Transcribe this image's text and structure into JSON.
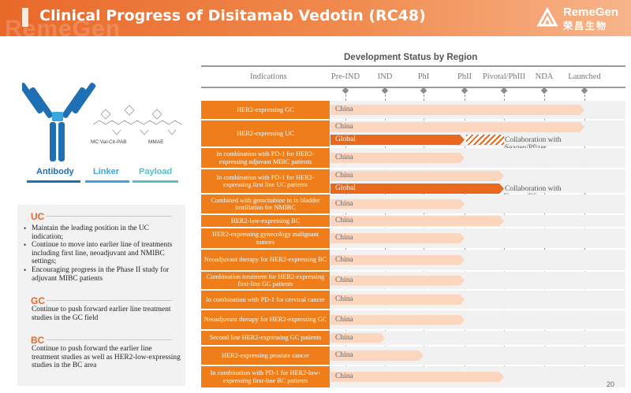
{
  "header": {
    "title": "Clinical Progress of Disitamab Vedotin (RC48)",
    "ghost_text": "RemeGen",
    "logo": {
      "brand": "RemeGen",
      "brand_cn": "荣昌生物"
    }
  },
  "figure": {
    "labels": {
      "antibody": "Antibody",
      "linker": "Linker",
      "payload": "Payload"
    },
    "chem_labels": {
      "mc_val_cit": "MC  Val-Cit-PAB",
      "mmae": "MMAE"
    },
    "colors": {
      "antibody": "#1f6fb5",
      "linker": "#3aa6dd",
      "payload": "#56c1c8"
    }
  },
  "left_panel": {
    "uc": {
      "title": "UC",
      "bullets": [
        "Maintain the leading position in the UC indication;",
        "Continue to move into earlier line of treatments including first line, neoadjuvant and NMIBC settings;",
        "Encouraging progress in the Phase II study for adjuvant MIBC patients"
      ]
    },
    "gc": {
      "title": "GC",
      "text": "Continue to push forward earlier line treatment studies in the GC field"
    },
    "bc": {
      "title": "BC",
      "text": "Continue to push forward the earlier line treatment studies as well as HER2-low-expressing studies in the BC area"
    }
  },
  "chart": {
    "title": "Development  Status by Region",
    "indications_header": "Indications",
    "stages": [
      "Pre-IND",
      "IND",
      "PhI",
      "PhII",
      "Pivotal/PhIII",
      "NDA",
      "Launched"
    ],
    "rows": [
      {
        "indication": "HER2-expressing GC",
        "bars": [
          {
            "region": "China",
            "stage_reached": 6.0,
            "style": "light"
          }
        ]
      },
      {
        "indication": "HER2-expressing UC",
        "bars": [
          {
            "region": "China",
            "stage_reached": 6.0,
            "style": "light"
          },
          {
            "region": "Global",
            "stage_reached": 3.0,
            "style": "dark",
            "hatched_to": 4.0
          }
        ],
        "note": "Collaboration with Seagen/Pfizer"
      },
      {
        "indication": "In combination with PD-1 for HER2-expressing adjuvant MIBC patients",
        "bars": [
          {
            "region": "China",
            "stage_reached": 3.0,
            "style": "light"
          }
        ]
      },
      {
        "indication": "In combination with PD-1 for HER2-expressing first line UC patients",
        "bars": [
          {
            "region": "China",
            "stage_reached": 4.0,
            "style": "light"
          },
          {
            "region": "Global",
            "stage_reached": 4.0,
            "style": "dark"
          }
        ],
        "note": "Collaboration with Seagen/Pfizer"
      },
      {
        "indication": "Combined with gemcitabine in in bladder instillation for NMIBC",
        "bars": [
          {
            "region": "China",
            "stage_reached": 3.0,
            "style": "light"
          }
        ]
      },
      {
        "indication": "HER2-low-expressing  BC",
        "bars": [
          {
            "region": "China",
            "stage_reached": 4.0,
            "style": "light"
          }
        ]
      },
      {
        "indication": "HER2-expressing gynecology malignant tumors",
        "bars": [
          {
            "region": "China",
            "stage_reached": 3.0,
            "style": "light"
          }
        ]
      },
      {
        "indication": "Neoadjuvant therapy for HER2-expressing BC",
        "bars": [
          {
            "region": "China",
            "stage_reached": 3.0,
            "style": "light"
          }
        ]
      },
      {
        "indication": "Combination treatment for HER2-expressing first-line GC patients",
        "bars": [
          {
            "region": "China",
            "stage_reached": 3.0,
            "style": "light"
          }
        ]
      },
      {
        "indication": "In combination with PD-1 for cervical cancer",
        "bars": [
          {
            "region": "China",
            "stage_reached": 3.0,
            "style": "light"
          }
        ]
      },
      {
        "indication": "Neoadjuvant therapy for HER2-expressing GC",
        "bars": [
          {
            "region": "China",
            "stage_reached": 3.0,
            "style": "light"
          }
        ]
      },
      {
        "indication": "Second line HER2-expressing GC patients",
        "bars": [
          {
            "region": "China",
            "stage_reached": 1.0,
            "style": "light"
          }
        ]
      },
      {
        "indication": "HER2-expressing prostate cancer",
        "bars": [
          {
            "region": "China",
            "stage_reached": 2.0,
            "style": "light"
          }
        ]
      },
      {
        "indication": "In combination with PD-1 for HER2-low-expressing first-line BC patients",
        "bars": [
          {
            "region": "China",
            "stage_reached": 4.0,
            "style": "light"
          }
        ]
      }
    ],
    "colors": {
      "indication_cell": "#ef7d1a",
      "light_bar": "#fbd5bd",
      "dark_bar": "#e8691d"
    }
  },
  "page_number": "20"
}
